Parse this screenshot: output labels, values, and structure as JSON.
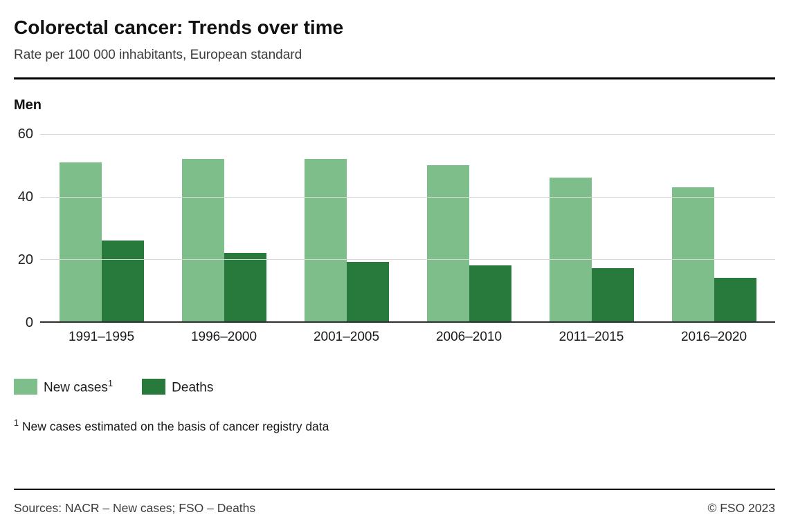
{
  "header": {
    "title": "Colorectal cancer: Trends over time",
    "subtitle": "Rate per 100 000 inhabitants, European standard"
  },
  "chart": {
    "panel_label": "Men"
  },
  "chart_data": {
    "type": "bar",
    "title": "Colorectal cancer: Trends over time",
    "subtitle": "Rate per 100 000 inhabitants, European standard",
    "panel": "Men",
    "categories": [
      "1991–1995",
      "1996–2000",
      "2001–2005",
      "2006–2010",
      "2011–2015",
      "2016–2020"
    ],
    "series": [
      {
        "name": "New cases",
        "footnote_marker": "1",
        "color": "#7dbe8b",
        "values": [
          51,
          52,
          52,
          50,
          46,
          43
        ]
      },
      {
        "name": "Deaths",
        "footnote_marker": "",
        "color": "#27793c",
        "values": [
          26,
          22,
          19,
          18,
          17,
          14
        ]
      }
    ],
    "xlabel": "",
    "ylabel": "",
    "ylim": [
      0,
      60
    ],
    "yticks": [
      0,
      20,
      40,
      60
    ],
    "grid": "horizontal",
    "legend_position": "bottom-left"
  },
  "legend": {
    "items": [
      {
        "label": "New cases",
        "sup": "1",
        "color": "#7dbe8b"
      },
      {
        "label": "Deaths",
        "sup": "",
        "color": "#27793c"
      }
    ]
  },
  "footnote": {
    "marker": "1",
    "text": "New cases estimated on the basis of cancer registry data"
  },
  "footer": {
    "sources": "Sources: NACR – New cases; FSO – Deaths",
    "copyright": "© FSO 2023"
  }
}
